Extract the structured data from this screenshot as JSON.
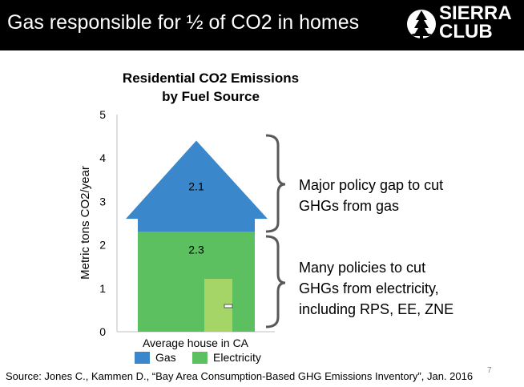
{
  "header": {
    "title": "Gas responsible for ½ of CO2 in homes",
    "logo_line1": "SIERRA",
    "logo_line2": "CLUB"
  },
  "chart_data": {
    "type": "bar",
    "style": "stacked, house-shaped",
    "title_line1": "Residential CO2 Emissions",
    "title_line2": "by Fuel Source",
    "categories": [
      "Average house in CA"
    ],
    "series": [
      {
        "name": "Electricity",
        "values": [
          2.3
        ],
        "color": "#5cbf60"
      },
      {
        "name": "Gas",
        "values": [
          2.1
        ],
        "color": "#3b87cc"
      }
    ],
    "xlabel": "Average house in CA",
    "ylabel": "Metric tons CO2/year",
    "ylim": [
      0,
      5
    ],
    "yticks": [
      "0",
      "1",
      "2",
      "3",
      "4",
      "5"
    ],
    "grid": false,
    "legend_position": "bottom"
  },
  "annotations": {
    "gas_lines": [
      "Major policy gap to cut",
      "GHGs from gas"
    ],
    "elec_lines": [
      "Many policies to cut",
      "GHGs from electricity,",
      "including  RPS,  EE,  ZNE"
    ]
  },
  "source": "Source: Jones C., Kammen D., “Bay Area Consumption-Based GHG Emissions Inventory”, Jan. 2016",
  "page_number": "7",
  "colors": {
    "gas": "#3b87cc",
    "electricity": "#5cbf60",
    "door": "#a4d566",
    "bracket": "#595959",
    "header_bg": "#000000"
  }
}
